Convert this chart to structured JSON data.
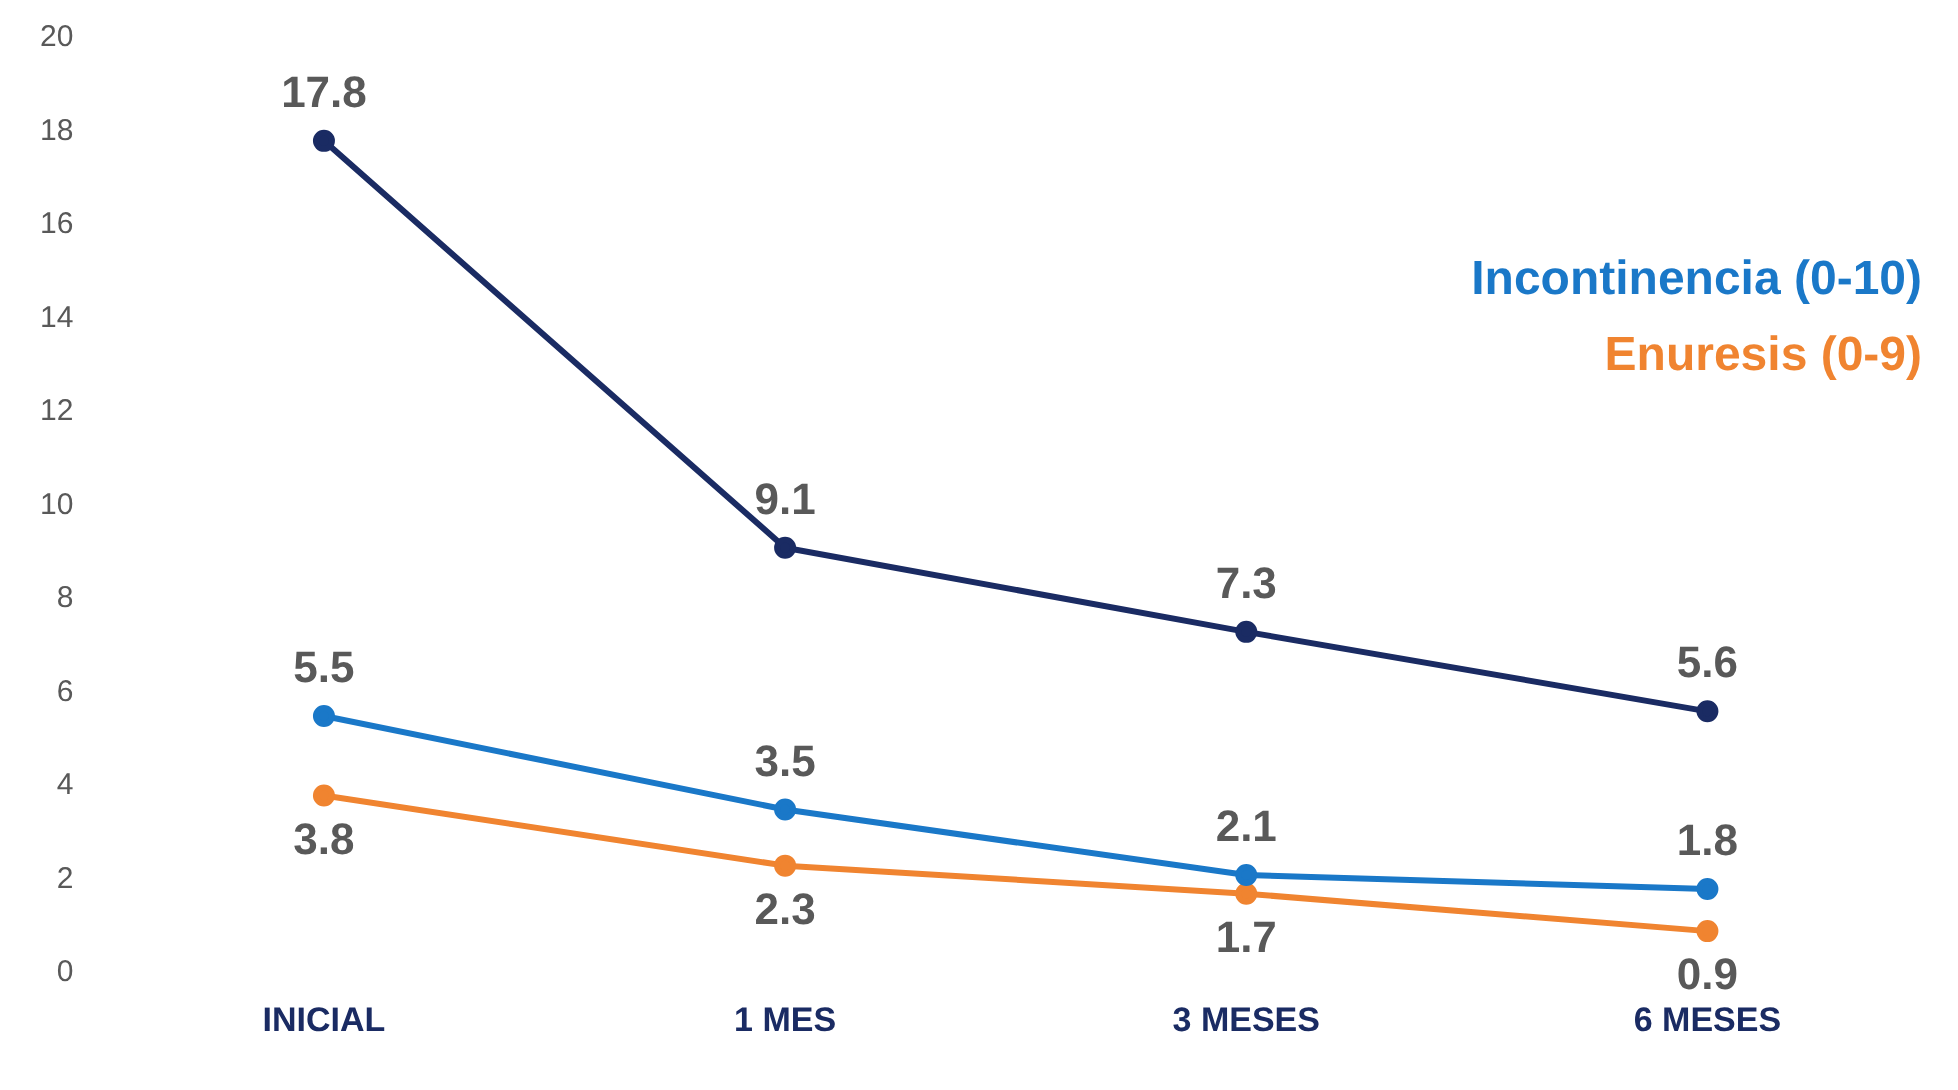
{
  "chart_data": {
    "type": "line",
    "categories": [
      "INICIAL",
      "1 MES",
      "3 MESES",
      "6 MESES"
    ],
    "series": [
      {
        "color": "#1a2b63",
        "values": [
          17.8,
          9.1,
          7.3,
          5.6
        ]
      },
      {
        "name": "Incontinencia (0-10)",
        "color": "#1a78c8",
        "values": [
          5.5,
          3.5,
          2.1,
          1.8
        ]
      },
      {
        "name": "Enuresis (0-9)",
        "color": "#f08430",
        "values": [
          3.8,
          2.3,
          1.7,
          0.9
        ]
      }
    ],
    "ylim": [
      0,
      20
    ],
    "yticks": [
      0,
      2,
      4,
      6,
      8,
      10,
      12,
      14,
      16,
      18,
      20
    ],
    "grid": false,
    "legend": "right",
    "marker": "circle",
    "line_style": "solid",
    "data_labels": true
  }
}
